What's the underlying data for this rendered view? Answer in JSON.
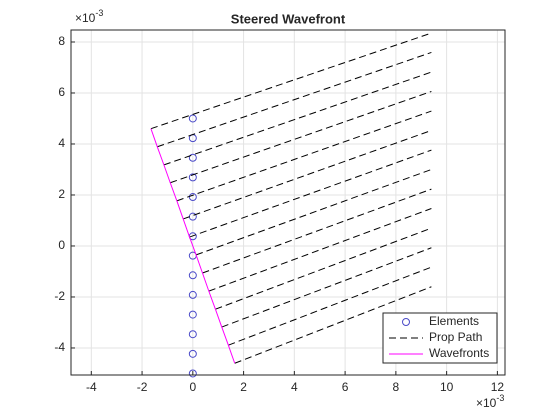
{
  "chart_data": {
    "type": "line",
    "title": "Steered Wavefront",
    "x_multiplier": "×10",
    "x_multiplier_power": "-3",
    "y_multiplier": "×10",
    "y_multiplier_power": "-3",
    "xlim": [
      -4.8,
      12.3
    ],
    "ylim": [
      -5.06,
      8.47
    ],
    "xticks": [
      -4,
      -2,
      0,
      2,
      4,
      6,
      8,
      10,
      12
    ],
    "yticks": [
      -4,
      -2,
      0,
      2,
      4,
      6,
      8
    ],
    "grid": true,
    "legend": "lower right",
    "series": [
      {
        "name": "Elements",
        "color": "#4b4bc8",
        "marker": "circle",
        "line": "none",
        "x": [
          0,
          0,
          0,
          0,
          0,
          0,
          0,
          0,
          0,
          0,
          0,
          0,
          0,
          0
        ],
        "y": [
          5.0,
          4.23,
          3.46,
          2.69,
          1.92,
          1.15,
          0.38,
          -0.38,
          -1.15,
          -1.92,
          -2.69,
          -3.46,
          -4.23,
          -5.0
        ]
      },
      {
        "name": "Prop Path",
        "color": "#000000",
        "marker": "none",
        "line": "dashed",
        "x": [
          -1.65,
          9.4,
          null,
          -1.4,
          9.4,
          null,
          -1.14,
          9.4,
          null,
          -0.89,
          9.4,
          null,
          -0.63,
          9.4,
          null,
          -0.38,
          9.4,
          null,
          -0.13,
          9.4,
          null,
          0.13,
          9.4,
          null,
          0.38,
          9.4,
          null,
          0.63,
          9.4,
          null,
          0.89,
          9.4,
          null,
          1.14,
          9.4,
          null,
          1.4,
          9.4,
          null,
          1.65,
          9.4
        ],
        "y": [
          4.6,
          8.35,
          null,
          3.89,
          7.59,
          null,
          3.18,
          6.82,
          null,
          2.48,
          6.06,
          null,
          1.77,
          5.29,
          null,
          1.06,
          4.53,
          null,
          0.35,
          3.76,
          null,
          -0.35,
          3.0,
          null,
          -1.06,
          2.23,
          null,
          -1.77,
          1.47,
          null,
          -2.48,
          0.7,
          null,
          -3.18,
          -0.07,
          null,
          -3.89,
          -0.83,
          null,
          -4.6,
          -1.6
        ]
      },
      {
        "name": "Wavefronts",
        "color": "#ff00ff",
        "marker": "none",
        "line": "solid",
        "x": [
          -1.65,
          -1.4,
          -1.14,
          -0.89,
          -0.63,
          -0.38,
          -0.13,
          0.13,
          0.38,
          0.63,
          0.89,
          1.14,
          1.4,
          1.65
        ],
        "y": [
          4.6,
          3.89,
          3.18,
          2.48,
          1.77,
          1.06,
          0.35,
          -0.35,
          -1.06,
          -1.77,
          -2.48,
          -3.18,
          -3.89,
          -4.6
        ]
      }
    ]
  }
}
